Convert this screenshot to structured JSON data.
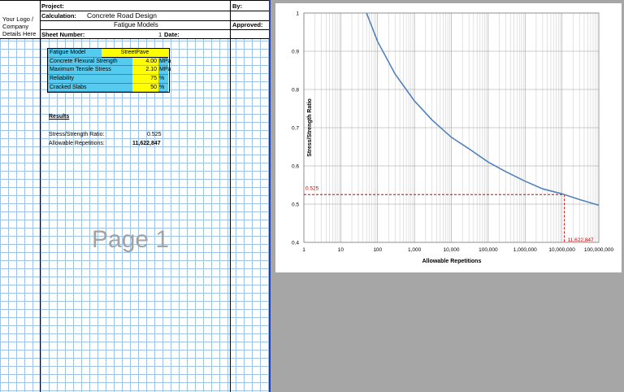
{
  "header": {
    "project_label": "Project:",
    "by_label": "By:",
    "logo_lines": [
      "Your Logo /",
      "Company",
      "Details Here"
    ],
    "calculation_label": "Calculation:",
    "calculation_value": "Concrete Road Design",
    "sub_title": "Fatigue Models",
    "approved_label": "Approved:",
    "sheet_number_label": "Sheet Number:",
    "sheet_number_value": "1",
    "date_label": "Date:"
  },
  "inputs": {
    "model_label": "Fatigue Model",
    "model_value": "StreetPave",
    "rows": [
      {
        "label": "Concrete Flexural Strength",
        "value": "4.00",
        "unit": "MPa"
      },
      {
        "label": "Maximum Tensile Stress",
        "value": "2.10",
        "unit": "MPa"
      },
      {
        "label": "Reliability",
        "value": "75",
        "unit": "%"
      },
      {
        "label": "Cracked Slabs",
        "value": "50",
        "unit": "%"
      }
    ]
  },
  "results": {
    "heading": "Results",
    "ratio_label": "Stress/Strength Ratio:",
    "ratio_value": "0.525",
    "reps_label": "Allowable Repetitions:",
    "reps_value": "11,622,847"
  },
  "watermark": "Page 1",
  "chart_data": {
    "type": "line",
    "xlabel": "Allowable Repetitions",
    "ylabel": "Stress/Strength Ratio",
    "xscale": "log",
    "xlim": [
      1,
      100000000
    ],
    "ylim": [
      0.4,
      1.0
    ],
    "xticks": [
      "1",
      "10",
      "100",
      "1,000",
      "10,000",
      "100,000",
      "1,000,000",
      "10,000,000",
      "100,000,000"
    ],
    "yticks": [
      "0.4",
      "0.5",
      "0.6",
      "0.7",
      "0.8",
      "0.9",
      "1"
    ],
    "grid": true,
    "series": [
      {
        "color": "#4f81bd",
        "x": [
          50,
          100,
          300,
          1000,
          3000,
          10000,
          30000,
          100000,
          300000,
          1000000,
          3000000,
          10000000,
          30000000,
          100000000
        ],
        "y": [
          1.0,
          0.925,
          0.84,
          0.77,
          0.72,
          0.675,
          0.645,
          0.61,
          0.585,
          0.56,
          0.54,
          0.527,
          0.512,
          0.497
        ]
      }
    ],
    "marker": {
      "x": 11622847,
      "y": 0.525,
      "x_label": "11,622,847",
      "y_label": "0.525",
      "color": "#d40000"
    }
  }
}
